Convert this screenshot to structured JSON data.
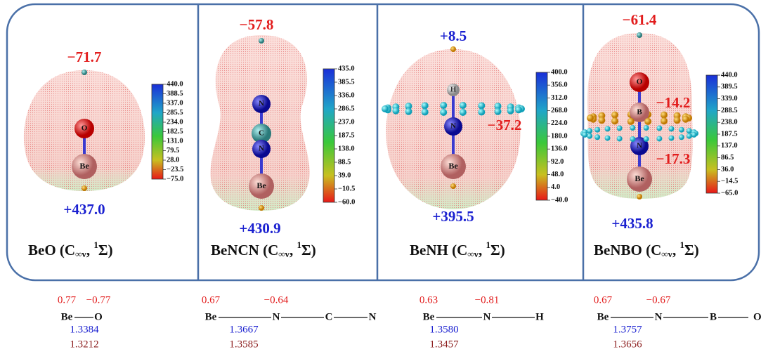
{
  "panels": [
    {
      "label": {
        "name": "BeO (C",
        "sub": "∞v",
        "mid": ", ",
        "sup": "1",
        "end": "Σ)"
      },
      "top": "−71.7",
      "bottom": "+437.0",
      "inner": [],
      "atoms": [
        "O",
        "Be"
      ],
      "colorbar": [
        "440.0",
        "388.5",
        "337.0",
        "285.5",
        "234.0",
        "182.5",
        "131.0",
        "79.5",
        "28.0",
        "−23.5",
        "−75.0"
      ],
      "structure": {
        "charges": [
          "0.77",
          "−0.77"
        ],
        "atoms": [
          "Be",
          "O"
        ],
        "lengths": [
          "1.3384",
          "1.3212"
        ]
      }
    },
    {
      "label": {
        "name": "BeNCN (C",
        "sub": "∞v",
        "mid": ", ",
        "sup": "1",
        "end": "Σ)"
      },
      "top": "−57.8",
      "bottom": "+430.9",
      "inner": [],
      "atoms": [
        "N",
        "C",
        "N",
        "Be"
      ],
      "colorbar": [
        "435.0",
        "385.5",
        "336.0",
        "286.5",
        "237.0",
        "187.5",
        "138.0",
        "88.5",
        "39.0",
        "−10.5",
        "−60.0"
      ],
      "structure": {
        "charges": [
          "0.67",
          "−0.64"
        ],
        "atoms": [
          "Be",
          "N",
          "C",
          "N"
        ],
        "lengths": [
          "1.3667",
          "1.3585"
        ]
      }
    },
    {
      "label": {
        "name": "BeNH (C",
        "sub": "∞v",
        "mid": ", ",
        "sup": "1",
        "end": "Σ)"
      },
      "top": "+8.5",
      "bottom": "+395.5",
      "inner": [
        "−37.2"
      ],
      "atoms": [
        "H",
        "N",
        "Be"
      ],
      "colorbar": [
        "400.0",
        "356.0",
        "312.0",
        "268.0",
        "224.0",
        "180.0",
        "136.0",
        "92.0",
        "48.0",
        "4.0",
        "−40.0"
      ],
      "structure": {
        "charges": [
          "0.63",
          "−0.81"
        ],
        "atoms": [
          "Be",
          "N",
          "H"
        ],
        "lengths": [
          "1.3580",
          "1.3457"
        ]
      }
    },
    {
      "label": {
        "name": "BeNBO (C",
        "sub": "∞v",
        "mid": ", ",
        "sup": "1",
        "end": "Σ)"
      },
      "top": "−61.4",
      "bottom": "+435.8",
      "inner": [
        "−14.2",
        "−17.3"
      ],
      "atoms": [
        "O",
        "B",
        "N",
        "Be"
      ],
      "colorbar": [
        "440.0",
        "389.5",
        "339.0",
        "288.5",
        "238.0",
        "187.5",
        "137.0",
        "86.5",
        "36.0",
        "−14.5",
        "−65.0"
      ],
      "structure": {
        "charges": [
          "0.67",
          "−0.67"
        ],
        "atoms": [
          "Be",
          "N",
          "B",
          "O"
        ],
        "lengths": [
          "1.3757",
          "1.3656"
        ]
      }
    }
  ]
}
